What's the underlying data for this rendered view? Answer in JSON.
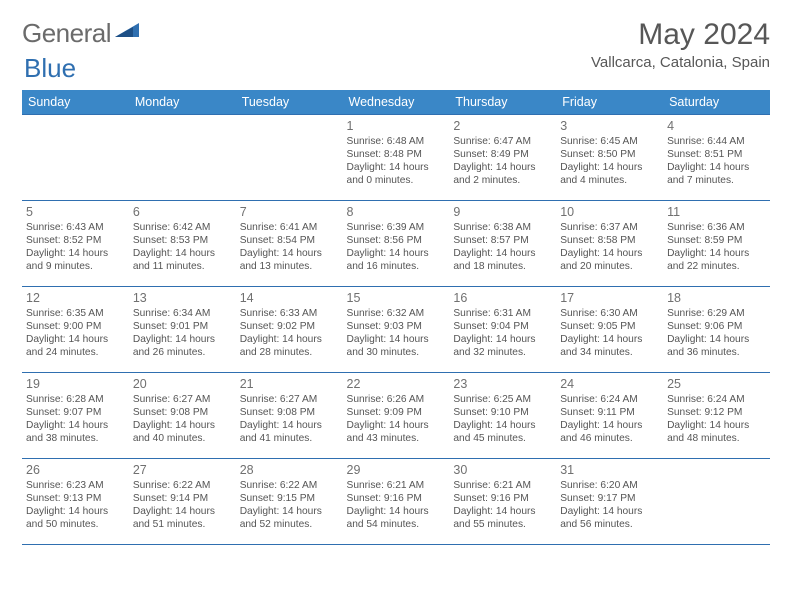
{
  "logo": {
    "text_a": "General",
    "text_b": "Blue"
  },
  "title": "May 2024",
  "location": "Vallcarca, Catalonia, Spain",
  "day_headers": [
    "Sunday",
    "Monday",
    "Tuesday",
    "Wednesday",
    "Thursday",
    "Friday",
    "Saturday"
  ],
  "colors": {
    "header_bg": "#3a87c7",
    "border": "#2f6fb0",
    "text": "#555555",
    "title_text": "#575757"
  },
  "weeks": [
    [
      null,
      null,
      null,
      {
        "n": "1",
        "sr": "6:48 AM",
        "ss": "8:48 PM",
        "dl1": "Daylight: 14 hours",
        "dl2": "and 0 minutes."
      },
      {
        "n": "2",
        "sr": "6:47 AM",
        "ss": "8:49 PM",
        "dl1": "Daylight: 14 hours",
        "dl2": "and 2 minutes."
      },
      {
        "n": "3",
        "sr": "6:45 AM",
        "ss": "8:50 PM",
        "dl1": "Daylight: 14 hours",
        "dl2": "and 4 minutes."
      },
      {
        "n": "4",
        "sr": "6:44 AM",
        "ss": "8:51 PM",
        "dl1": "Daylight: 14 hours",
        "dl2": "and 7 minutes."
      }
    ],
    [
      {
        "n": "5",
        "sr": "6:43 AM",
        "ss": "8:52 PM",
        "dl1": "Daylight: 14 hours",
        "dl2": "and 9 minutes."
      },
      {
        "n": "6",
        "sr": "6:42 AM",
        "ss": "8:53 PM",
        "dl1": "Daylight: 14 hours",
        "dl2": "and 11 minutes."
      },
      {
        "n": "7",
        "sr": "6:41 AM",
        "ss": "8:54 PM",
        "dl1": "Daylight: 14 hours",
        "dl2": "and 13 minutes."
      },
      {
        "n": "8",
        "sr": "6:39 AM",
        "ss": "8:56 PM",
        "dl1": "Daylight: 14 hours",
        "dl2": "and 16 minutes."
      },
      {
        "n": "9",
        "sr": "6:38 AM",
        "ss": "8:57 PM",
        "dl1": "Daylight: 14 hours",
        "dl2": "and 18 minutes."
      },
      {
        "n": "10",
        "sr": "6:37 AM",
        "ss": "8:58 PM",
        "dl1": "Daylight: 14 hours",
        "dl2": "and 20 minutes."
      },
      {
        "n": "11",
        "sr": "6:36 AM",
        "ss": "8:59 PM",
        "dl1": "Daylight: 14 hours",
        "dl2": "and 22 minutes."
      }
    ],
    [
      {
        "n": "12",
        "sr": "6:35 AM",
        "ss": "9:00 PM",
        "dl1": "Daylight: 14 hours",
        "dl2": "and 24 minutes."
      },
      {
        "n": "13",
        "sr": "6:34 AM",
        "ss": "9:01 PM",
        "dl1": "Daylight: 14 hours",
        "dl2": "and 26 minutes."
      },
      {
        "n": "14",
        "sr": "6:33 AM",
        "ss": "9:02 PM",
        "dl1": "Daylight: 14 hours",
        "dl2": "and 28 minutes."
      },
      {
        "n": "15",
        "sr": "6:32 AM",
        "ss": "9:03 PM",
        "dl1": "Daylight: 14 hours",
        "dl2": "and 30 minutes."
      },
      {
        "n": "16",
        "sr": "6:31 AM",
        "ss": "9:04 PM",
        "dl1": "Daylight: 14 hours",
        "dl2": "and 32 minutes."
      },
      {
        "n": "17",
        "sr": "6:30 AM",
        "ss": "9:05 PM",
        "dl1": "Daylight: 14 hours",
        "dl2": "and 34 minutes."
      },
      {
        "n": "18",
        "sr": "6:29 AM",
        "ss": "9:06 PM",
        "dl1": "Daylight: 14 hours",
        "dl2": "and 36 minutes."
      }
    ],
    [
      {
        "n": "19",
        "sr": "6:28 AM",
        "ss": "9:07 PM",
        "dl1": "Daylight: 14 hours",
        "dl2": "and 38 minutes."
      },
      {
        "n": "20",
        "sr": "6:27 AM",
        "ss": "9:08 PM",
        "dl1": "Daylight: 14 hours",
        "dl2": "and 40 minutes."
      },
      {
        "n": "21",
        "sr": "6:27 AM",
        "ss": "9:08 PM",
        "dl1": "Daylight: 14 hours",
        "dl2": "and 41 minutes."
      },
      {
        "n": "22",
        "sr": "6:26 AM",
        "ss": "9:09 PM",
        "dl1": "Daylight: 14 hours",
        "dl2": "and 43 minutes."
      },
      {
        "n": "23",
        "sr": "6:25 AM",
        "ss": "9:10 PM",
        "dl1": "Daylight: 14 hours",
        "dl2": "and 45 minutes."
      },
      {
        "n": "24",
        "sr": "6:24 AM",
        "ss": "9:11 PM",
        "dl1": "Daylight: 14 hours",
        "dl2": "and 46 minutes."
      },
      {
        "n": "25",
        "sr": "6:24 AM",
        "ss": "9:12 PM",
        "dl1": "Daylight: 14 hours",
        "dl2": "and 48 minutes."
      }
    ],
    [
      {
        "n": "26",
        "sr": "6:23 AM",
        "ss": "9:13 PM",
        "dl1": "Daylight: 14 hours",
        "dl2": "and 50 minutes."
      },
      {
        "n": "27",
        "sr": "6:22 AM",
        "ss": "9:14 PM",
        "dl1": "Daylight: 14 hours",
        "dl2": "and 51 minutes."
      },
      {
        "n": "28",
        "sr": "6:22 AM",
        "ss": "9:15 PM",
        "dl1": "Daylight: 14 hours",
        "dl2": "and 52 minutes."
      },
      {
        "n": "29",
        "sr": "6:21 AM",
        "ss": "9:16 PM",
        "dl1": "Daylight: 14 hours",
        "dl2": "and 54 minutes."
      },
      {
        "n": "30",
        "sr": "6:21 AM",
        "ss": "9:16 PM",
        "dl1": "Daylight: 14 hours",
        "dl2": "and 55 minutes."
      },
      {
        "n": "31",
        "sr": "6:20 AM",
        "ss": "9:17 PM",
        "dl1": "Daylight: 14 hours",
        "dl2": "and 56 minutes."
      },
      null
    ]
  ]
}
